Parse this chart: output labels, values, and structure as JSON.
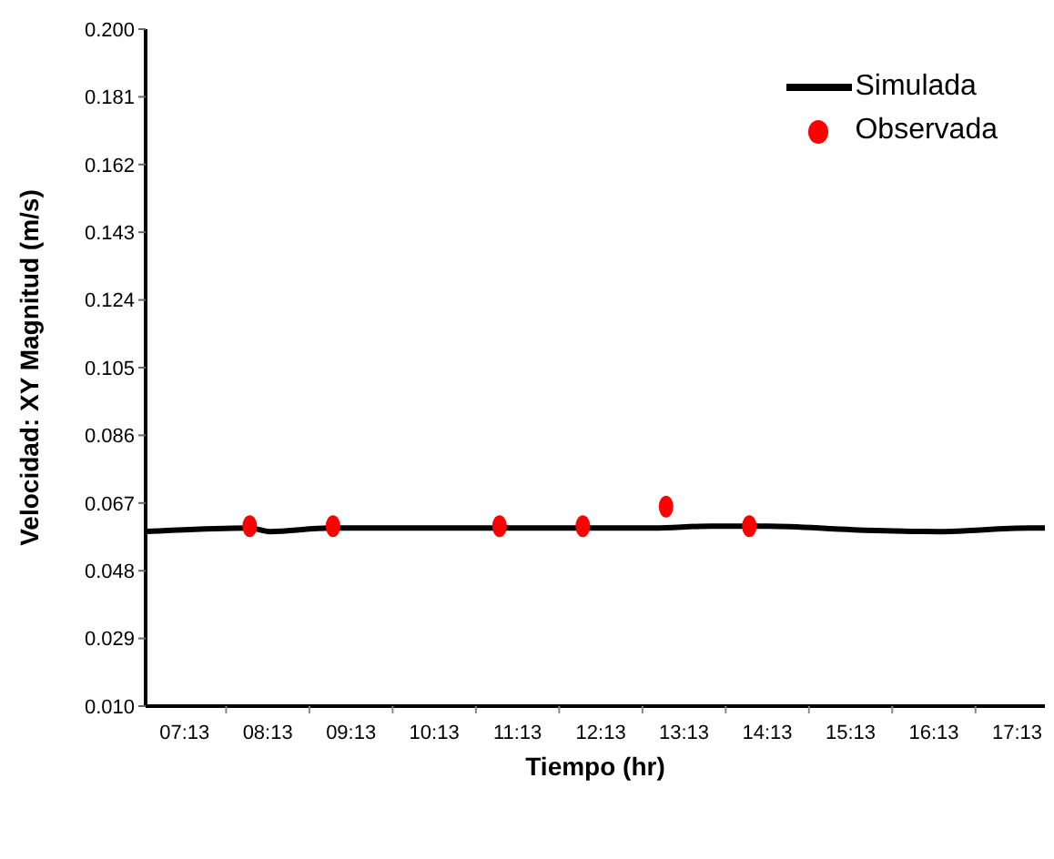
{
  "chart_data": {
    "type": "line",
    "xlabel": "Tiempo (hr)",
    "ylabel": "Velocidad: XY Magnitud (m/s)",
    "xlim": [
      6.75,
      17.55
    ],
    "ylim": [
      0.01,
      0.2
    ],
    "xticks": [
      {
        "value": 7.2167,
        "label": "07:13"
      },
      {
        "value": 7.7167,
        "label": null
      },
      {
        "value": 8.2167,
        "label": "08:13"
      },
      {
        "value": 8.7167,
        "label": null
      },
      {
        "value": 9.2167,
        "label": "09:13"
      },
      {
        "value": 9.7167,
        "label": null
      },
      {
        "value": 10.2167,
        "label": "10:13"
      },
      {
        "value": 10.7167,
        "label": null
      },
      {
        "value": 11.2167,
        "label": "11:13"
      },
      {
        "value": 11.7167,
        "label": null
      },
      {
        "value": 12.2167,
        "label": "12:13"
      },
      {
        "value": 12.7167,
        "label": null
      },
      {
        "value": 13.2167,
        "label": "13:13"
      },
      {
        "value": 13.7167,
        "label": null
      },
      {
        "value": 14.2167,
        "label": "14:13"
      },
      {
        "value": 14.7167,
        "label": null
      },
      {
        "value": 15.2167,
        "label": "15:13"
      },
      {
        "value": 15.7167,
        "label": null
      },
      {
        "value": 16.2167,
        "label": "16:13"
      },
      {
        "value": 16.7167,
        "label": null
      },
      {
        "value": 17.2167,
        "label": "17:13"
      }
    ],
    "yticks": [
      {
        "value": 0.01,
        "label": "0.010"
      },
      0.029,
      0.048,
      0.067,
      0.086,
      0.105,
      0.124,
      0.143,
      0.162,
      0.181,
      {
        "value": 0.2,
        "label": "0.200"
      }
    ],
    "legend": "top right",
    "grid": false,
    "series": [
      {
        "name": "Simulada",
        "color": "#000000",
        "marker": "none",
        "line_style": "solid",
        "x": [
          6.75,
          8.0,
          8.24,
          8.96,
          10.5,
          12.85,
          13.53,
          14.23,
          15.25,
          16.27,
          17.36,
          17.55
        ],
        "values": [
          0.059,
          0.06,
          0.059,
          0.06,
          0.06,
          0.06,
          0.0605,
          0.0605,
          0.0595,
          0.059,
          0.06,
          0.06
        ]
      },
      {
        "name": "Observada",
        "type": "scatter",
        "color": "#ff0000",
        "marker": "circle",
        "x": [
          8.0,
          9.0,
          11.0,
          12.0,
          13.0,
          14.0
        ],
        "values": [
          0.0605,
          0.0605,
          0.0605,
          0.0605,
          0.066,
          0.0605
        ]
      }
    ]
  }
}
